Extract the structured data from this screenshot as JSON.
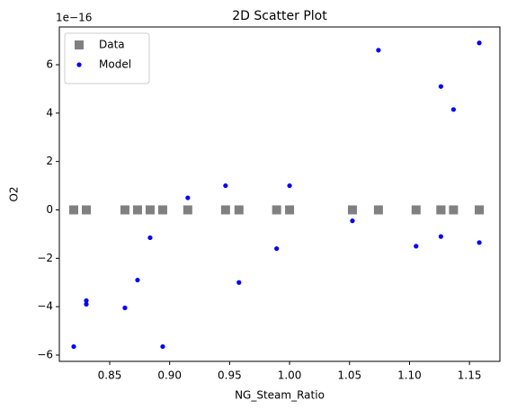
{
  "chart_data": {
    "type": "scatter",
    "title": "2D Scatter Plot",
    "x_label": "NG_Steam_Ratio",
    "y_label": "O2",
    "y_offset_text": "1e−16",
    "xlim": [
      0.808,
      1.1754
    ],
    "ylim": [
      -6.26,
      7.56
    ],
    "xticks": [
      0.85,
      {
        "value": 0.9,
        "label": "0.90"
      },
      0.95,
      {
        "value": 1.0,
        "label": "1.00"
      },
      1.05,
      {
        "value": 1.1,
        "label": "1.10"
      },
      1.15
    ],
    "yticks": [
      {
        "value": -6,
        "label": "−6"
      },
      {
        "value": -4,
        "label": "−4"
      },
      {
        "value": -2,
        "label": "−2"
      },
      0,
      2,
      4,
      6
    ],
    "legend": "upper left",
    "series": [
      {
        "name": "Data",
        "color": "#808080",
        "marker": "square",
        "x": [
          0.82,
          0.8305,
          0.8305,
          0.8627,
          0.8732,
          0.8837,
          0.8942,
          0.9151,
          0.9466,
          0.9578,
          0.9892,
          1.0,
          1.0524,
          1.0741,
          1.1055,
          1.1262,
          1.1262,
          1.1367,
          1.1582,
          1.1582
        ],
        "values": [
          0,
          0,
          0,
          0,
          0,
          0,
          0,
          0,
          0,
          0,
          0,
          0,
          0,
          0,
          0,
          0,
          0,
          0,
          0,
          0
        ]
      },
      {
        "name": "Model",
        "color": "#0000ff",
        "marker": "circle",
        "x": [
          0.82,
          0.8305,
          0.8305,
          0.8627,
          0.8732,
          0.8837,
          0.8942,
          0.9151,
          0.9466,
          0.9578,
          0.9892,
          1.0,
          1.0524,
          1.0741,
          1.1055,
          1.1262,
          1.1262,
          1.1367,
          1.1582,
          1.1582
        ],
        "values": [
          -5.65,
          -3.75,
          -3.9,
          -4.05,
          -2.9,
          -1.15,
          -5.65,
          0.5,
          1.0,
          -3.0,
          -1.6,
          1.0,
          -0.45,
          6.6,
          -1.5,
          5.1,
          -1.1,
          4.15,
          6.9,
          -1.35
        ]
      }
    ]
  }
}
